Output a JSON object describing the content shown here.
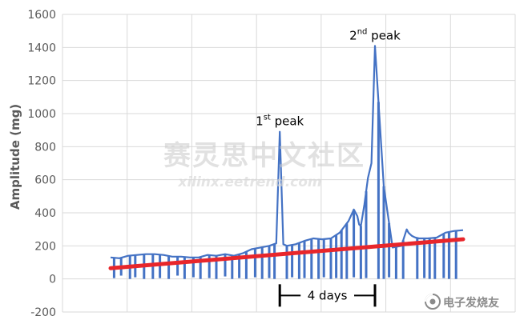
{
  "chart_data": {
    "type": "line",
    "title": "",
    "xlabel": "",
    "ylabel": "Amplitude (mg)",
    "ylim": [
      -200,
      1600
    ],
    "yticks": [
      -200,
      0,
      200,
      400,
      600,
      800,
      1000,
      1200,
      1400,
      1600
    ],
    "grid": true,
    "x_unit": "sample",
    "xlim": [
      0,
      1000
    ],
    "series": [
      {
        "role": "measured",
        "color": "#4472C4",
        "x": [
          0,
          25,
          50,
          75,
          100,
          125,
          150,
          175,
          200,
          225,
          250,
          275,
          300,
          325,
          350,
          375,
          400,
          425,
          450,
          470,
          480,
          490,
          500,
          525,
          550,
          575,
          600,
          625,
          650,
          675,
          690,
          700,
          705,
          710,
          720,
          730,
          740,
          750,
          775,
          800,
          825,
          840,
          845,
          850,
          855,
          860,
          865,
          875,
          900,
          925,
          950,
          975,
          1000
        ],
        "values": [
          130,
          125,
          140,
          145,
          150,
          150,
          145,
          135,
          135,
          130,
          130,
          145,
          140,
          150,
          140,
          155,
          180,
          190,
          200,
          215,
          890,
          210,
          200,
          210,
          230,
          245,
          240,
          245,
          280,
          350,
          420,
          380,
          330,
          320,
          450,
          610,
          700,
          1410,
          560,
          190,
          200,
          300,
          280,
          270,
          260,
          255,
          250,
          245,
          245,
          250,
          280,
          290,
          295
        ]
      },
      {
        "role": "trend",
        "color": "#E8262B",
        "x": [
          0,
          1000
        ],
        "values": [
          65,
          240
        ]
      }
    ],
    "dropouts": [
      {
        "x": 10,
        "y": 5
      },
      {
        "x": 30,
        "y": 20
      },
      {
        "x": 55,
        "y": 0
      },
      {
        "x": 70,
        "y": 10
      },
      {
        "x": 95,
        "y": 0
      },
      {
        "x": 120,
        "y": 0
      },
      {
        "x": 140,
        "y": 5
      },
      {
        "x": 165,
        "y": 0
      },
      {
        "x": 190,
        "y": 20
      },
      {
        "x": 210,
        "y": 0
      },
      {
        "x": 235,
        "y": 10
      },
      {
        "x": 255,
        "y": 0
      },
      {
        "x": 280,
        "y": 5
      },
      {
        "x": 300,
        "y": 0
      },
      {
        "x": 325,
        "y": 15
      },
      {
        "x": 345,
        "y": 0
      },
      {
        "x": 365,
        "y": 5
      },
      {
        "x": 385,
        "y": 0
      },
      {
        "x": 410,
        "y": 10
      },
      {
        "x": 430,
        "y": 0
      },
      {
        "x": 450,
        "y": 5
      },
      {
        "x": 465,
        "y": 0
      },
      {
        "x": 500,
        "y": 0
      },
      {
        "x": 515,
        "y": 10
      },
      {
        "x": 535,
        "y": 0
      },
      {
        "x": 550,
        "y": 5
      },
      {
        "x": 570,
        "y": 0
      },
      {
        "x": 590,
        "y": 0
      },
      {
        "x": 605,
        "y": 10
      },
      {
        "x": 625,
        "y": 0
      },
      {
        "x": 640,
        "y": 5
      },
      {
        "x": 655,
        "y": 0
      },
      {
        "x": 670,
        "y": 0
      },
      {
        "x": 690,
        "y": 10
      },
      {
        "x": 710,
        "y": 0
      },
      {
        "x": 725,
        "y": 5
      },
      {
        "x": 760,
        "y": 0
      },
      {
        "x": 775,
        "y": 0
      },
      {
        "x": 790,
        "y": 10
      },
      {
        "x": 810,
        "y": 0
      },
      {
        "x": 830,
        "y": 0
      },
      {
        "x": 870,
        "y": 0
      },
      {
        "x": 890,
        "y": 5
      },
      {
        "x": 905,
        "y": 0
      },
      {
        "x": 920,
        "y": 0
      },
      {
        "x": 945,
        "y": 5
      },
      {
        "x": 960,
        "y": 0
      },
      {
        "x": 980,
        "y": 0
      }
    ],
    "annotations": [
      {
        "id": "first-peak",
        "base": "1",
        "sup": "st",
        "rest": " peak",
        "x": 480,
        "y": 890
      },
      {
        "id": "second-peak",
        "base": "2",
        "sup": "nd",
        "rest": " peak",
        "x": 750,
        "y": 1410
      }
    ],
    "interval": {
      "label": "4 days",
      "x_start": 480,
      "x_end": 750,
      "y": -100
    }
  },
  "watermark": {
    "cn_text": "赛灵思中文社区",
    "url_text": "xilinx.eetrend.com"
  },
  "logo": {
    "text": "电子发烧友",
    "url": "www.elecfans.com",
    "icon": "elecfans-logo-icon"
  }
}
